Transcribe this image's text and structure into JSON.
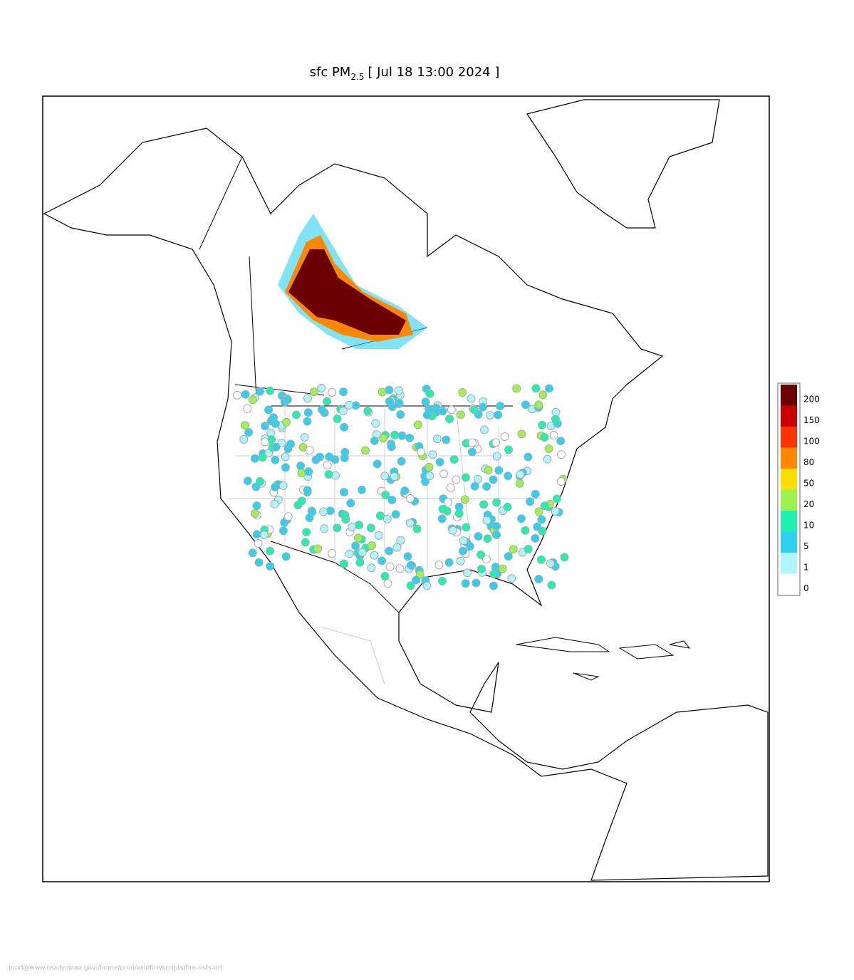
{
  "title": {
    "prefix": "sfc PM",
    "subscript": "2.5",
    "suffix": "[ Jul 18 13:00 2024 ]"
  },
  "legend": {
    "levels": [
      200,
      150,
      100,
      80,
      50,
      20,
      10,
      5,
      1,
      0
    ],
    "colors": [
      "#6b0000",
      "#c80000",
      "#ff3300",
      "#ff8800",
      "#ffdd00",
      "#a0f050",
      "#20f0b0",
      "#30d0f0",
      "#b0f4ff",
      "#ffffff"
    ]
  },
  "footer": "prod@www.ready.noaa.gov:/home/prod/wildfire/scripts/fire-nsfs-nrt"
}
